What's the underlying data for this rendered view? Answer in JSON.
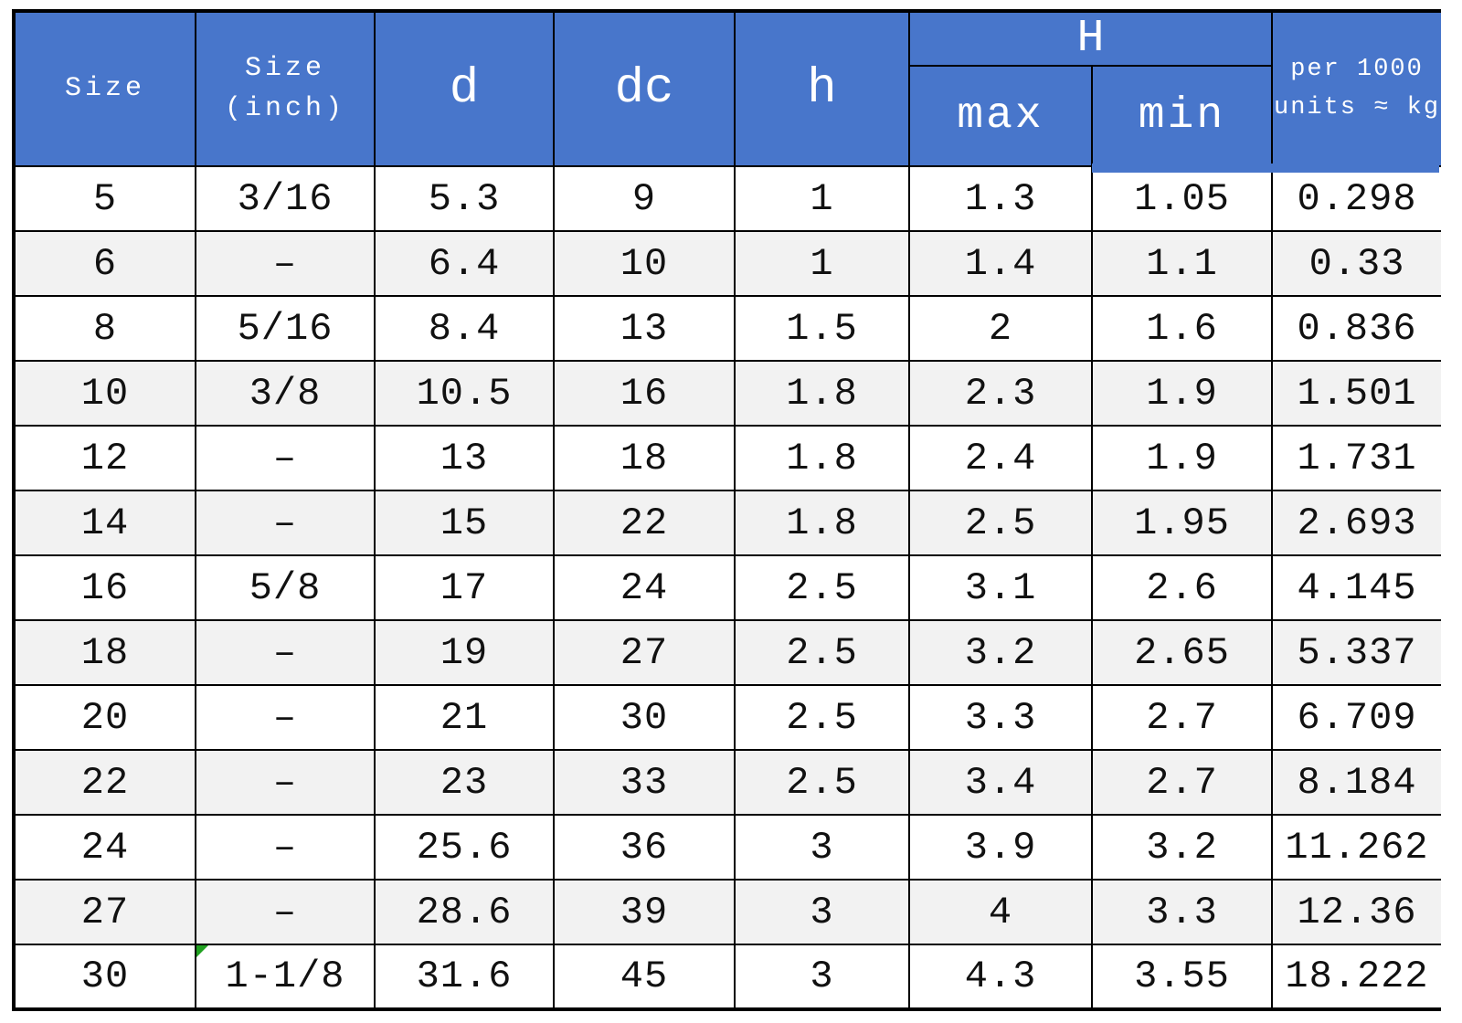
{
  "table": {
    "header": {
      "size": "Size",
      "size_inch": [
        "Size",
        "(inch)"
      ],
      "d": "d",
      "dc": "dc",
      "h": "h",
      "H": "H",
      "max": "max",
      "min": "min",
      "weight": [
        "per 1000",
        "units ≈ kg"
      ]
    }
  },
  "chart_data": {
    "type": "table",
    "columns": [
      "Size",
      "Size (inch)",
      "d",
      "dc",
      "h",
      "H max",
      "H min",
      "per 1000 units ≈ kg"
    ],
    "rows": [
      [
        "5",
        "3/16",
        "5.3",
        "9",
        "1",
        "1.3",
        "1.05",
        "0.298"
      ],
      [
        "6",
        "–",
        "6.4",
        "10",
        "1",
        "1.4",
        "1.1",
        "0.33"
      ],
      [
        "8",
        "5/16",
        "8.4",
        "13",
        "1.5",
        "2",
        "1.6",
        "0.836"
      ],
      [
        "10",
        "3/8",
        "10.5",
        "16",
        "1.8",
        "2.3",
        "1.9",
        "1.501"
      ],
      [
        "12",
        "–",
        "13",
        "18",
        "1.8",
        "2.4",
        "1.9",
        "1.731"
      ],
      [
        "14",
        "–",
        "15",
        "22",
        "1.8",
        "2.5",
        "1.95",
        "2.693"
      ],
      [
        "16",
        "5/8",
        "17",
        "24",
        "2.5",
        "3.1",
        "2.6",
        "4.145"
      ],
      [
        "18",
        "–",
        "19",
        "27",
        "2.5",
        "3.2",
        "2.65",
        "5.337"
      ],
      [
        "20",
        "–",
        "21",
        "30",
        "2.5",
        "3.3",
        "2.7",
        "6.709"
      ],
      [
        "22",
        "–",
        "23",
        "33",
        "2.5",
        "3.4",
        "2.7",
        "8.184"
      ],
      [
        "24",
        "–",
        "25.6",
        "36",
        "3",
        "3.9",
        "3.2",
        "11.262"
      ],
      [
        "27",
        "–",
        "28.6",
        "39",
        "3",
        "4",
        "3.3",
        "12.36"
      ],
      [
        "30",
        "1-1/8",
        "31.6",
        "45",
        "3",
        "4.3",
        "3.55",
        "18.222"
      ]
    ]
  },
  "colors": {
    "header_bg": "#4876CB",
    "header_text": "#FFFFFF",
    "row_alt_bg": "#F2F2F2",
    "border": "#000000",
    "flag_marker": "#21A121"
  },
  "decorations": {
    "flag_cell": {
      "row_index": 12,
      "col_index": 1
    }
  }
}
